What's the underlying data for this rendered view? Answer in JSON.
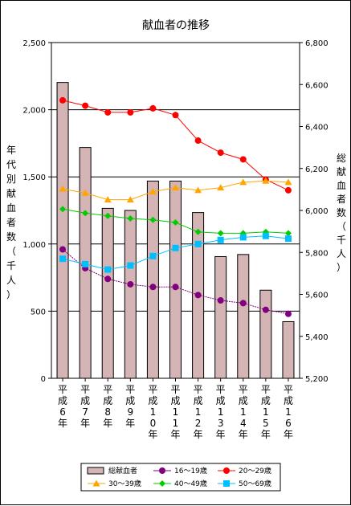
{
  "chart_data": {
    "type": "bar",
    "title": "献血者の推移",
    "ylabel_left": "年代別献血者数（千人）",
    "ylabel_right": "総献血者数（千人）",
    "categories": [
      "平成6年",
      "平成7年",
      "平成8年",
      "平成9年",
      "平成10年",
      "平成11年",
      "平成12年",
      "平成13年",
      "平成14年",
      "平成15年",
      "平成16年"
    ],
    "ylim_left": [
      0,
      2500
    ],
    "ylim_right": [
      5200,
      6800
    ],
    "yticks_left": [
      "0",
      "500",
      "1,000",
      "1,500",
      "2,000",
      "2,500"
    ],
    "yticks_right": [
      "5,200",
      "5,400",
      "5,600",
      "5,800",
      "6,000",
      "6,200",
      "6,400",
      "6,600",
      "6,800"
    ],
    "bar_series": {
      "name": "総献血者",
      "axis": "right",
      "color": "#d4b4b4",
      "values": [
        6610,
        6300,
        6010,
        6000,
        6140,
        6140,
        5990,
        5780,
        5790,
        5620,
        5470
      ]
    },
    "line_series": [
      {
        "name": "16～19歳",
        "color": "#800080",
        "marker": "circle",
        "values": [
          960,
          820,
          740,
          700,
          680,
          680,
          620,
          580,
          560,
          510,
          480
        ]
      },
      {
        "name": "20～29歳",
        "color": "#ff0000",
        "marker": "circle",
        "values": [
          2070,
          2030,
          1980,
          1980,
          2010,
          1960,
          1770,
          1680,
          1630,
          1480,
          1400
        ]
      },
      {
        "name": "30～39歳",
        "color": "#ffa500",
        "marker": "triangle",
        "values": [
          1410,
          1380,
          1330,
          1330,
          1390,
          1420,
          1400,
          1420,
          1460,
          1470,
          1460
        ]
      },
      {
        "name": "40～49歳",
        "color": "#00cc00",
        "marker": "diamond",
        "values": [
          1260,
          1230,
          1210,
          1190,
          1180,
          1160,
          1090,
          1080,
          1080,
          1090,
          1080
        ]
      },
      {
        "name": "50～69歳",
        "color": "#00bfff",
        "marker": "square",
        "values": [
          890,
          850,
          810,
          840,
          910,
          970,
          1000,
          1030,
          1050,
          1060,
          1040
        ]
      }
    ],
    "grid": "horizontal",
    "legend": "bottom"
  }
}
